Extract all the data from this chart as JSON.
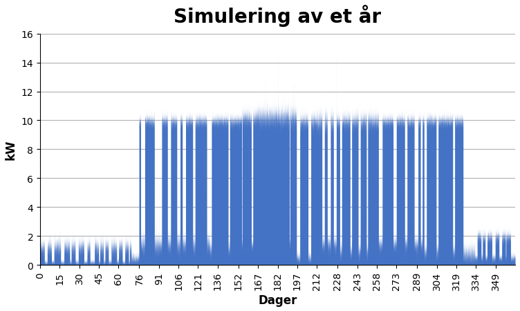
{
  "title": "Simulering av et år",
  "xlabel": "Dager",
  "ylabel": "kW",
  "ylim": [
    0,
    16
  ],
  "yticks": [
    0,
    2,
    4,
    6,
    8,
    10,
    12,
    14,
    16
  ],
  "xticks": [
    0,
    15,
    30,
    45,
    60,
    76,
    91,
    106,
    121,
    136,
    152,
    167,
    182,
    197,
    212,
    228,
    243,
    258,
    273,
    289,
    304,
    319,
    334,
    349
  ],
  "fill_color": "#4472C4",
  "background_color": "#ffffff",
  "title_fontsize": 20,
  "label_fontsize": 12,
  "tick_fontsize": 10,
  "grid_color": "#b0b0b0",
  "grid_linewidth": 0.8,
  "xlim": [
    0,
    364
  ]
}
